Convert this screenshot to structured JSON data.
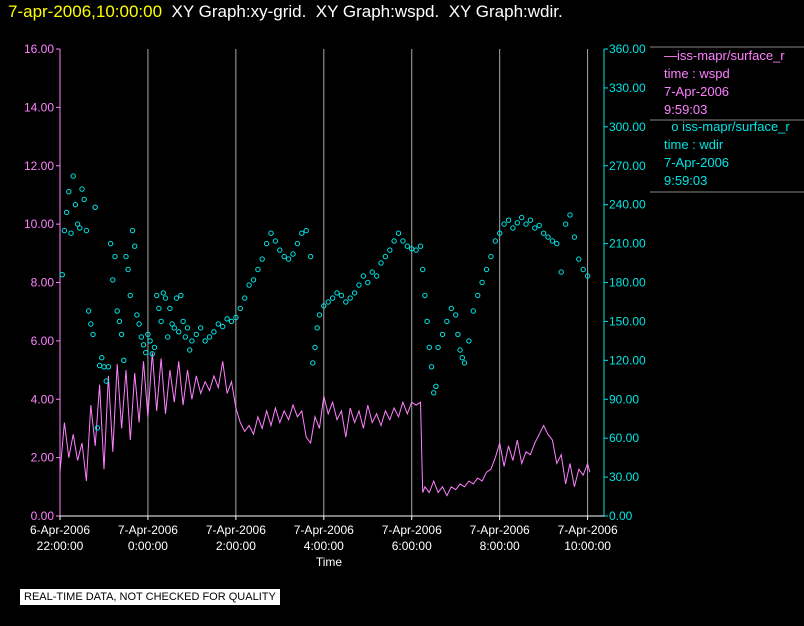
{
  "header": {
    "timestamp": "7-apr-2006,10:00:00",
    "graphs": [
      "XY Graph:xy-grid.",
      "XY Graph:wspd.",
      "XY Graph:wdir."
    ]
  },
  "legend": {
    "wspd": {
      "line_marker": "—",
      "name": "iss-mapr/surface_r",
      "var": "time : wspd",
      "date": "7-Apr-2006",
      "time": "9:59:03"
    },
    "wdir": {
      "point_marker": "o",
      "name": "iss-mapr/surface_r",
      "var": "time : wdir",
      "date": "7-Apr-2006",
      "time": "9:59:03"
    }
  },
  "disclaimer": "REAL-TIME DATA, NOT CHECKED FOR QUALITY",
  "chart_data": {
    "type": "line",
    "xlabel": "Time",
    "xlim": [
      -2,
      10.1
    ],
    "x_ticks": [
      {
        "v": -2,
        "l1": "6-Apr-2006",
        "l2": "22:00:00"
      },
      {
        "v": 0,
        "l1": "7-Apr-2006",
        "l2": "0:00:00"
      },
      {
        "v": 2,
        "l1": "7-Apr-2006",
        "l2": "2:00:00"
      },
      {
        "v": 4,
        "l1": "7-Apr-2006",
        "l2": "4:00:00"
      },
      {
        "v": 6,
        "l1": "7-Apr-2006",
        "l2": "6:00:00"
      },
      {
        "v": 8,
        "l1": "7-Apr-2006",
        "l2": "8:00:00"
      },
      {
        "v": 10,
        "l1": "7-Apr-2006",
        "l2": "10:00:00"
      }
    ],
    "left_axis": {
      "ylim": [
        0,
        16
      ],
      "ticks": [
        "0.00",
        "2.00",
        "4.00",
        "6.00",
        "8.00",
        "10.00",
        "12.00",
        "14.00",
        "16.00"
      ],
      "color": "#ff80ff"
    },
    "right_axis": {
      "ylim": [
        0,
        360
      ],
      "ticks": [
        "0.00",
        "30.00",
        "60.00",
        "90.00",
        "120.00",
        "150.00",
        "180.00",
        "210.00",
        "240.00",
        "270.00",
        "300.00",
        "330.00",
        "360.00"
      ],
      "color": "#00e5e5"
    },
    "vertical_grid": true,
    "colors": {
      "wspd": "#ff80ff",
      "wdir": "#00e5e5",
      "grid": "#aaaaaa",
      "axis_right": "#00e5e5",
      "axis_left": "#ff80ff"
    },
    "series": [
      {
        "key": "wspd",
        "axis": "left",
        "style": "line",
        "points": [
          [
            -2.0,
            1.5
          ],
          [
            -1.9,
            3.2
          ],
          [
            -1.8,
            2.0
          ],
          [
            -1.7,
            2.8
          ],
          [
            -1.6,
            1.9
          ],
          [
            -1.5,
            2.5
          ],
          [
            -1.4,
            1.2
          ],
          [
            -1.3,
            3.8
          ],
          [
            -1.2,
            2.4
          ],
          [
            -1.1,
            4.5
          ],
          [
            -1.0,
            1.6
          ],
          [
            -0.9,
            4.8
          ],
          [
            -0.8,
            2.2
          ],
          [
            -0.7,
            5.2
          ],
          [
            -0.6,
            3.0
          ],
          [
            -0.5,
            5.0
          ],
          [
            -0.4,
            2.6
          ],
          [
            -0.3,
            4.9
          ],
          [
            -0.2,
            3.2
          ],
          [
            -0.1,
            5.3
          ],
          [
            0.0,
            3.4
          ],
          [
            0.1,
            5.6
          ],
          [
            0.2,
            3.6
          ],
          [
            0.3,
            5.4
          ],
          [
            0.4,
            3.5
          ],
          [
            0.5,
            5.0
          ],
          [
            0.6,
            3.9
          ],
          [
            0.7,
            5.3
          ],
          [
            0.8,
            3.8
          ],
          [
            0.9,
            5.0
          ],
          [
            1.0,
            4.0
          ],
          [
            1.1,
            4.8
          ],
          [
            1.2,
            4.2
          ],
          [
            1.3,
            4.6
          ],
          [
            1.4,
            4.3
          ],
          [
            1.5,
            4.8
          ],
          [
            1.6,
            4.4
          ],
          [
            1.7,
            5.3
          ],
          [
            1.8,
            4.2
          ],
          [
            1.9,
            4.6
          ],
          [
            2.0,
            3.7
          ],
          [
            2.1,
            3.2
          ],
          [
            2.2,
            2.9
          ],
          [
            2.3,
            3.1
          ],
          [
            2.4,
            2.8
          ],
          [
            2.5,
            3.4
          ],
          [
            2.6,
            3.0
          ],
          [
            2.7,
            3.6
          ],
          [
            2.8,
            3.1
          ],
          [
            2.9,
            3.7
          ],
          [
            3.0,
            3.2
          ],
          [
            3.1,
            3.6
          ],
          [
            3.2,
            3.3
          ],
          [
            3.3,
            3.8
          ],
          [
            3.4,
            3.4
          ],
          [
            3.5,
            3.6
          ],
          [
            3.6,
            2.7
          ],
          [
            3.7,
            2.5
          ],
          [
            3.8,
            3.4
          ],
          [
            3.9,
            3.0
          ],
          [
            4.0,
            4.1
          ],
          [
            4.1,
            3.5
          ],
          [
            4.2,
            3.9
          ],
          [
            4.3,
            3.3
          ],
          [
            4.4,
            3.6
          ],
          [
            4.5,
            2.7
          ],
          [
            4.6,
            3.7
          ],
          [
            4.7,
            3.2
          ],
          [
            4.8,
            3.6
          ],
          [
            4.9,
            3.0
          ],
          [
            5.0,
            3.8
          ],
          [
            5.1,
            3.2
          ],
          [
            5.2,
            3.5
          ],
          [
            5.3,
            3.1
          ],
          [
            5.4,
            3.6
          ],
          [
            5.5,
            3.3
          ],
          [
            5.6,
            3.7
          ],
          [
            5.7,
            3.4
          ],
          [
            5.8,
            3.9
          ],
          [
            5.9,
            3.5
          ],
          [
            6.0,
            3.9
          ],
          [
            6.1,
            3.8
          ],
          [
            6.2,
            3.9
          ],
          [
            6.25,
            0.8
          ],
          [
            6.3,
            1.0
          ],
          [
            6.4,
            0.8
          ],
          [
            6.5,
            1.2
          ],
          [
            6.6,
            0.8
          ],
          [
            6.7,
            1.0
          ],
          [
            6.8,
            0.7
          ],
          [
            6.9,
            1.0
          ],
          [
            7.0,
            0.9
          ],
          [
            7.1,
            1.1
          ],
          [
            7.2,
            1.0
          ],
          [
            7.3,
            1.2
          ],
          [
            7.4,
            1.1
          ],
          [
            7.5,
            1.3
          ],
          [
            7.6,
            1.2
          ],
          [
            7.7,
            1.5
          ],
          [
            7.8,
            1.6
          ],
          [
            7.9,
            2.0
          ],
          [
            8.0,
            2.5
          ],
          [
            8.1,
            1.7
          ],
          [
            8.2,
            2.4
          ],
          [
            8.3,
            1.9
          ],
          [
            8.4,
            2.6
          ],
          [
            8.5,
            1.8
          ],
          [
            8.6,
            2.2
          ],
          [
            8.7,
            2.1
          ],
          [
            8.8,
            2.5
          ],
          [
            8.9,
            2.8
          ],
          [
            9.0,
            3.1
          ],
          [
            9.1,
            2.8
          ],
          [
            9.2,
            2.6
          ],
          [
            9.3,
            1.8
          ],
          [
            9.4,
            2.1
          ],
          [
            9.5,
            1.1
          ],
          [
            9.6,
            1.8
          ],
          [
            9.7,
            1.0
          ],
          [
            9.8,
            1.6
          ],
          [
            9.9,
            1.4
          ],
          [
            10.0,
            1.8
          ],
          [
            10.05,
            1.5
          ]
        ]
      },
      {
        "key": "wdir",
        "axis": "right",
        "style": "points",
        "points": [
          [
            -1.95,
            186
          ],
          [
            -1.9,
            220
          ],
          [
            -1.85,
            234
          ],
          [
            -1.8,
            250
          ],
          [
            -1.75,
            218
          ],
          [
            -1.7,
            262
          ],
          [
            -1.65,
            240
          ],
          [
            -1.6,
            225
          ],
          [
            -1.55,
            222
          ],
          [
            -1.5,
            252
          ],
          [
            -1.45,
            244
          ],
          [
            -1.4,
            220
          ],
          [
            -1.35,
            158
          ],
          [
            -1.3,
            148
          ],
          [
            -1.25,
            140
          ],
          [
            -1.2,
            238
          ],
          [
            -1.15,
            68
          ],
          [
            -1.1,
            116
          ],
          [
            -1.05,
            122
          ],
          [
            -1.0,
            115
          ],
          [
            -0.95,
            104
          ],
          [
            -0.9,
            115
          ],
          [
            -0.85,
            210
          ],
          [
            -0.8,
            182
          ],
          [
            -0.75,
            200
          ],
          [
            -0.7,
            158
          ],
          [
            -0.65,
            150
          ],
          [
            -0.6,
            140
          ],
          [
            -0.55,
            120
          ],
          [
            -0.5,
            200
          ],
          [
            -0.45,
            190
          ],
          [
            -0.4,
            170
          ],
          [
            -0.35,
            220
          ],
          [
            -0.3,
            208
          ],
          [
            -0.25,
            155
          ],
          [
            -0.2,
            148
          ],
          [
            -0.15,
            138
          ],
          [
            -0.1,
            132
          ],
          [
            -0.05,
            126
          ],
          [
            0.0,
            140
          ],
          [
            0.05,
            135
          ],
          [
            0.1,
            125
          ],
          [
            0.15,
            130
          ],
          [
            0.2,
            170
          ],
          [
            0.25,
            160
          ],
          [
            0.3,
            150
          ],
          [
            0.35,
            172
          ],
          [
            0.4,
            168
          ],
          [
            0.45,
            138
          ],
          [
            0.5,
            160
          ],
          [
            0.55,
            148
          ],
          [
            0.6,
            145
          ],
          [
            0.65,
            168
          ],
          [
            0.7,
            142
          ],
          [
            0.75,
            170
          ],
          [
            0.8,
            150
          ],
          [
            0.85,
            138
          ],
          [
            0.9,
            145
          ],
          [
            0.95,
            128
          ],
          [
            1.0,
            135
          ],
          [
            1.1,
            140
          ],
          [
            1.2,
            145
          ],
          [
            1.3,
            135
          ],
          [
            1.4,
            138
          ],
          [
            1.5,
            142
          ],
          [
            1.6,
            148
          ],
          [
            1.7,
            146
          ],
          [
            1.8,
            152
          ],
          [
            1.9,
            150
          ],
          [
            2.0,
            153
          ],
          [
            2.1,
            160
          ],
          [
            2.2,
            168
          ],
          [
            2.3,
            178
          ],
          [
            2.4,
            182
          ],
          [
            2.5,
            190
          ],
          [
            2.6,
            198
          ],
          [
            2.7,
            210
          ],
          [
            2.8,
            218
          ],
          [
            2.9,
            212
          ],
          [
            3.0,
            205
          ],
          [
            3.1,
            200
          ],
          [
            3.2,
            198
          ],
          [
            3.3,
            202
          ],
          [
            3.4,
            210
          ],
          [
            3.5,
            218
          ],
          [
            3.6,
            220
          ],
          [
            3.7,
            200
          ],
          [
            3.75,
            118
          ],
          [
            3.8,
            130
          ],
          [
            3.85,
            145
          ],
          [
            3.9,
            155
          ],
          [
            4.0,
            162
          ],
          [
            4.1,
            165
          ],
          [
            4.2,
            168
          ],
          [
            4.3,
            172
          ],
          [
            4.4,
            170
          ],
          [
            4.5,
            165
          ],
          [
            4.6,
            168
          ],
          [
            4.7,
            172
          ],
          [
            4.8,
            178
          ],
          [
            4.9,
            185
          ],
          [
            5.0,
            180
          ],
          [
            5.1,
            188
          ],
          [
            5.2,
            185
          ],
          [
            5.3,
            195
          ],
          [
            5.4,
            200
          ],
          [
            5.5,
            205
          ],
          [
            5.6,
            212
          ],
          [
            5.7,
            218
          ],
          [
            5.8,
            212
          ],
          [
            5.9,
            208
          ],
          [
            6.0,
            206
          ],
          [
            6.1,
            205
          ],
          [
            6.2,
            208
          ],
          [
            6.25,
            190
          ],
          [
            6.3,
            170
          ],
          [
            6.35,
            150
          ],
          [
            6.4,
            130
          ],
          [
            6.45,
            115
          ],
          [
            6.5,
            95
          ],
          [
            6.55,
            100
          ],
          [
            6.6,
            130
          ],
          [
            6.7,
            140
          ],
          [
            6.8,
            150
          ],
          [
            6.9,
            160
          ],
          [
            7.0,
            155
          ],
          [
            7.05,
            140
          ],
          [
            7.1,
            128
          ],
          [
            7.15,
            122
          ],
          [
            7.2,
            118
          ],
          [
            7.3,
            135
          ],
          [
            7.4,
            158
          ],
          [
            7.5,
            170
          ],
          [
            7.6,
            180
          ],
          [
            7.7,
            190
          ],
          [
            7.8,
            200
          ],
          [
            7.9,
            212
          ],
          [
            8.0,
            218
          ],
          [
            8.1,
            225
          ],
          [
            8.2,
            228
          ],
          [
            8.3,
            222
          ],
          [
            8.4,
            226
          ],
          [
            8.5,
            230
          ],
          [
            8.6,
            225
          ],
          [
            8.7,
            228
          ],
          [
            8.8,
            222
          ],
          [
            8.9,
            224
          ],
          [
            9.0,
            218
          ],
          [
            9.1,
            215
          ],
          [
            9.2,
            212
          ],
          [
            9.3,
            210
          ],
          [
            9.4,
            188
          ],
          [
            9.5,
            225
          ],
          [
            9.6,
            232
          ],
          [
            9.7,
            215
          ],
          [
            9.8,
            198
          ],
          [
            9.9,
            190
          ],
          [
            10.0,
            185
          ]
        ]
      }
    ]
  }
}
